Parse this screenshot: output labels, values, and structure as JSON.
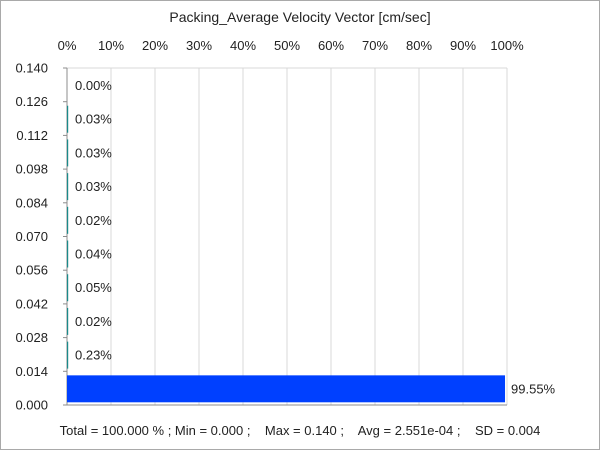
{
  "chart_data": {
    "type": "bar",
    "orientation": "horizontal",
    "title": "Packing_Average Velocity Vector [cm/sec]",
    "categories": [
      "0.000",
      "0.014",
      "0.028",
      "0.042",
      "0.056",
      "0.070",
      "0.084",
      "0.098",
      "0.112",
      "0.126",
      "0.140"
    ],
    "bins": [
      {
        "from": 0.0,
        "to": 0.014,
        "value": 99.55,
        "label": "99.55%"
      },
      {
        "from": 0.014,
        "to": 0.028,
        "value": 0.23,
        "label": "0.23%"
      },
      {
        "from": 0.028,
        "to": 0.042,
        "value": 0.02,
        "label": "0.02%"
      },
      {
        "from": 0.042,
        "to": 0.056,
        "value": 0.05,
        "label": "0.05%"
      },
      {
        "from": 0.056,
        "to": 0.07,
        "value": 0.04,
        "label": "0.04%"
      },
      {
        "from": 0.07,
        "to": 0.084,
        "value": 0.02,
        "label": "0.02%"
      },
      {
        "from": 0.084,
        "to": 0.098,
        "value": 0.03,
        "label": "0.03%"
      },
      {
        "from": 0.098,
        "to": 0.112,
        "value": 0.03,
        "label": "0.03%"
      },
      {
        "from": 0.112,
        "to": 0.126,
        "value": 0.03,
        "label": "0.03%"
      },
      {
        "from": 0.126,
        "to": 0.14,
        "value": 0.0,
        "label": "0.00%"
      }
    ],
    "x_ticks": [
      "0%",
      "10%",
      "20%",
      "30%",
      "40%",
      "50%",
      "60%",
      "70%",
      "80%",
      "90%",
      "100%"
    ],
    "xlim": [
      0,
      100
    ],
    "ylim": [
      0,
      0.14
    ],
    "grid": true,
    "bar_color": "#0040ff",
    "small_bar_color": "#1a8a8a"
  },
  "footer": {
    "text": "Total = 100.000 % ; Min = 0.000 ;    Max = 0.140 ;    Avg = 2.551e-04 ;    SD = 0.004"
  }
}
